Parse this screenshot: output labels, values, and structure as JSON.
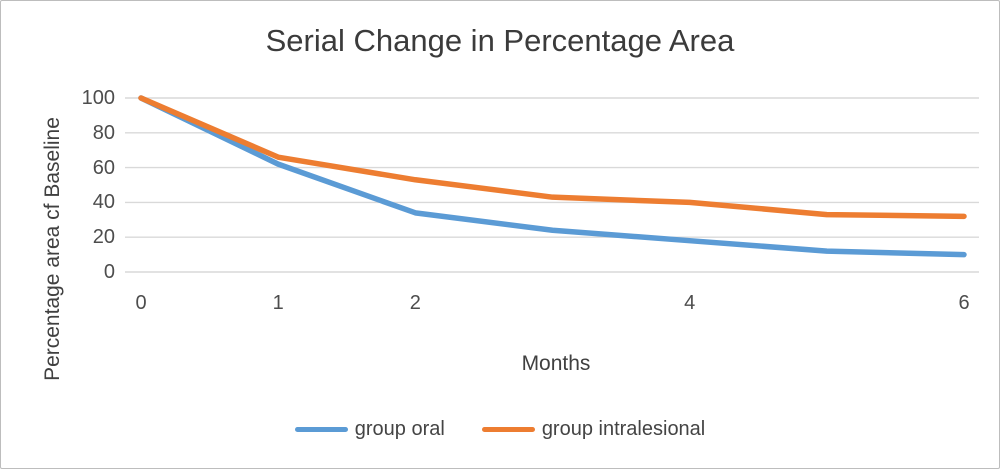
{
  "title": "Serial Change in Percentage Area",
  "colors": {
    "series_oral": "#5B9BD5",
    "series_intralesional": "#ED7D31",
    "gridline": "#D9D9D9",
    "tick_text": "#4d4d4d",
    "title_text": "#3b3b3b"
  },
  "chart_data": {
    "type": "line",
    "title": "Serial Change in Percentage Area",
    "xlabel": "Months",
    "ylabel": "Percentage area cf Baseline",
    "x": [
      0,
      1,
      2,
      3,
      4,
      5,
      6
    ],
    "series": [
      {
        "name": "group oral",
        "color": "#5B9BD5",
        "values": [
          100,
          62,
          34,
          24,
          18,
          12,
          10
        ]
      },
      {
        "name": "group intralesional",
        "color": "#ED7D31",
        "values": [
          100,
          66,
          53,
          43,
          40,
          33,
          32
        ]
      }
    ],
    "xlim": [
      0,
      6
    ],
    "ylim": [
      0,
      100
    ],
    "xticks": [
      0,
      1,
      2,
      4,
      6
    ],
    "yticks": [
      0,
      20,
      40,
      60,
      80,
      100
    ],
    "grid": "horizontal",
    "legend_position": "bottom"
  }
}
